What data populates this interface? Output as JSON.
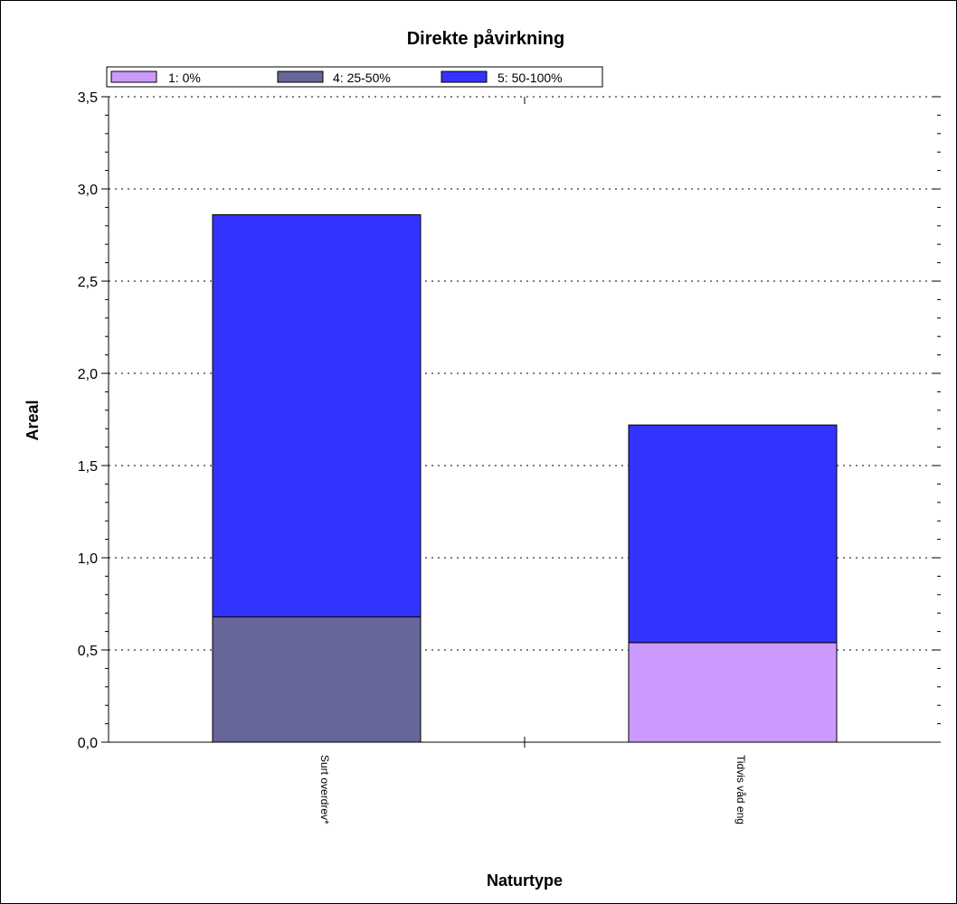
{
  "chart_data": {
    "type": "bar",
    "stacked": true,
    "title": "Direkte påvirkning",
    "xlabel": "Naturtype",
    "ylabel": "Areal",
    "ylim": [
      0,
      3.5
    ],
    "yticks": [
      0,
      0.5,
      1.0,
      1.5,
      2.0,
      2.5,
      3.0,
      3.5
    ],
    "ytick_labels": [
      "0,0",
      "0,5",
      "1,0",
      "1,5",
      "2,0",
      "2,5",
      "3,0",
      "3,5"
    ],
    "y_minor_step": 0.1,
    "grid": "horizontal dotted",
    "legend_position": "top-left",
    "categories": [
      "Surt overdrev*",
      "Tidvis våd eng"
    ],
    "series": [
      {
        "name": "1: 0%",
        "color": "#cc99ff",
        "values": [
          0,
          0.54
        ]
      },
      {
        "name": "4: 25-50%",
        "color": "#666699",
        "values": [
          0.68,
          0
        ]
      },
      {
        "name": "5: 50-100%",
        "color": "#3333ff",
        "values": [
          2.18,
          1.18
        ]
      }
    ]
  }
}
